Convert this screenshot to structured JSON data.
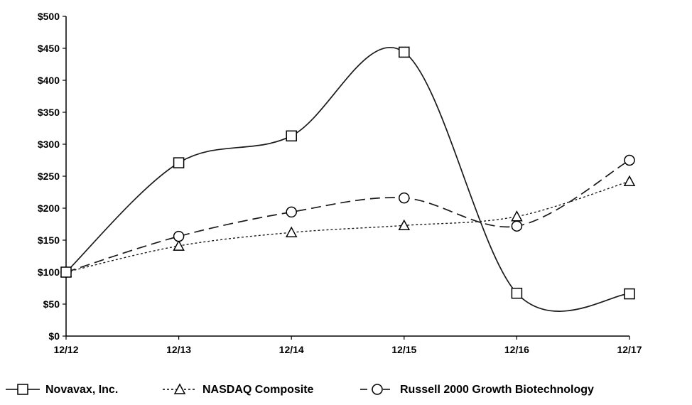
{
  "chart_data": {
    "type": "line",
    "title": "",
    "xlabel": "",
    "ylabel": "",
    "x": [
      "12/12",
      "12/13",
      "12/14",
      "12/15",
      "12/16",
      "12/17"
    ],
    "ylim": [
      0,
      500
    ],
    "yticks": [
      0,
      50,
      100,
      150,
      200,
      250,
      300,
      350,
      400,
      450,
      500
    ],
    "ytick_labels": [
      "$0",
      "$50",
      "$100",
      "$150",
      "$200",
      "$250",
      "$300",
      "$350",
      "$400",
      "$450",
      "$500"
    ],
    "grid": false,
    "legend_position": "bottom",
    "series": [
      {
        "name": "Novavax, Inc.",
        "values": [
          100,
          271,
          313,
          444,
          67,
          66
        ],
        "marker": "square",
        "line_style": "solid",
        "color": "#1a1a1a"
      },
      {
        "name": "NASDAQ Composite",
        "values": [
          100,
          141,
          162,
          173,
          187,
          242
        ],
        "marker": "triangle",
        "line_style": "dotted",
        "color": "#1a1a1a"
      },
      {
        "name": "Russell 2000 Growth Biotechnology",
        "values": [
          100,
          156,
          194,
          216,
          172,
          275
        ],
        "marker": "circle",
        "line_style": "dashed",
        "color": "#1a1a1a"
      }
    ]
  }
}
